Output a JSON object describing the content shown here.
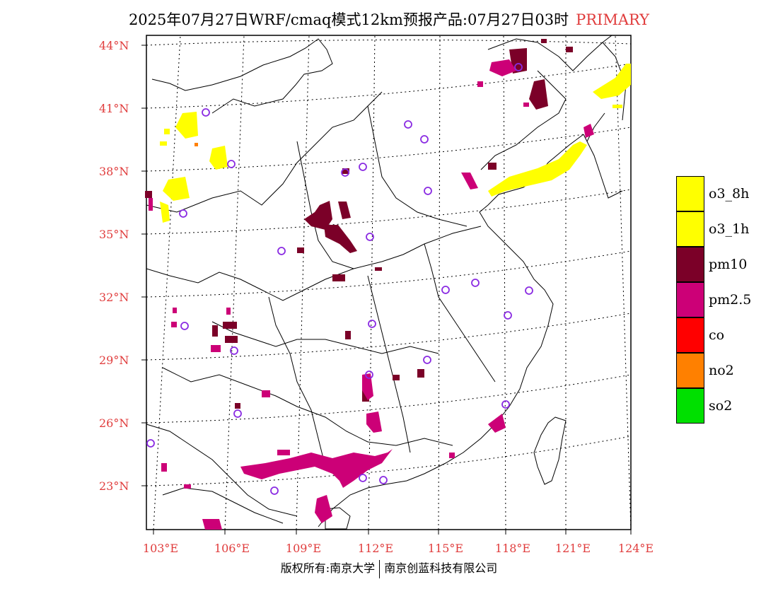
{
  "title": {
    "text": "2025年07月27日WRF/cmaq模式12km预报产品:07月27日03时",
    "tag": "PRIMARY"
  },
  "map": {
    "lat_labels": [
      "44°N",
      "41°N",
      "38°N",
      "35°N",
      "32°N",
      "29°N",
      "26°N",
      "23°N"
    ],
    "lon_labels": [
      "103°E",
      "106°E",
      "109°E",
      "112°E",
      "115°E",
      "118°E",
      "121°E",
      "124°E"
    ]
  },
  "legend": [
    {
      "label": "o3_8h",
      "color": "#ffff00"
    },
    {
      "label": "o3_1h",
      "color": "#ffff00"
    },
    {
      "label": "pm10",
      "color": "#7b0028"
    },
    {
      "label": "pm2.5",
      "color": "#cc0077"
    },
    {
      "label": "co",
      "color": "#ff0000"
    },
    {
      "label": "no2",
      "color": "#ff8000"
    },
    {
      "label": "so2",
      "color": "#00e000"
    }
  ],
  "footer": {
    "left": "版权所有:南京大学",
    "right": "南京创蓝科技有限公司"
  }
}
